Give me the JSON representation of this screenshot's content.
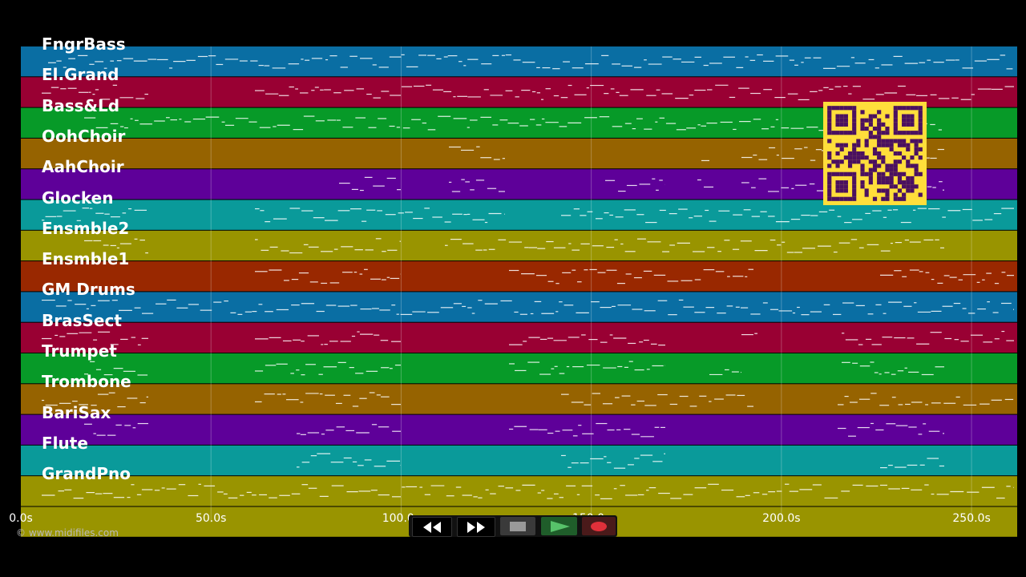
{
  "tracks": [
    {
      "name": "FngrBass",
      "color": "#0a6ea3"
    },
    {
      "name": "El.Grand",
      "color": "#990033"
    },
    {
      "name": "Bass&Ld",
      "color": "#079a28"
    },
    {
      "name": "OohChoir",
      "color": "#966300"
    },
    {
      "name": "AahChoir",
      "color": "#5e0099"
    },
    {
      "name": "Glocken",
      "color": "#0a9a9a"
    },
    {
      "name": "Ensmble2",
      "color": "#999400"
    },
    {
      "name": "Ensmble1",
      "color": "#992800"
    },
    {
      "name": "GM Drums",
      "color": "#0a6ea3"
    },
    {
      "name": "BrasSect",
      "color": "#990033"
    },
    {
      "name": "Trumpet",
      "color": "#079a28"
    },
    {
      "name": "Trombone",
      "color": "#966300"
    },
    {
      "name": "BariSax",
      "color": "#5e0099"
    },
    {
      "name": "Flute",
      "color": "#0a9a9a"
    },
    {
      "name": "GrandPno",
      "color": "#999400"
    },
    {
      "name": "",
      "color": "#999400"
    }
  ],
  "time_axis": {
    "ticks": [
      "0.0s",
      "50.0s",
      "100.0s",
      "150.0s",
      "200.0s",
      "250.0s"
    ],
    "range_seconds": [
      0,
      262
    ]
  },
  "copyright": "© www.midifiles.com",
  "controls": [
    {
      "name": "rewind-button",
      "icon": "rewind-icon"
    },
    {
      "name": "fast-forward-button",
      "icon": "fast-forward-icon"
    },
    {
      "name": "stop-button",
      "icon": "stop-icon"
    },
    {
      "name": "play-button",
      "icon": "play-icon"
    },
    {
      "name": "record-button",
      "icon": "record-icon"
    }
  ],
  "qr_code": {
    "icon": "qr-code-icon",
    "color": "#ffde3b"
  }
}
